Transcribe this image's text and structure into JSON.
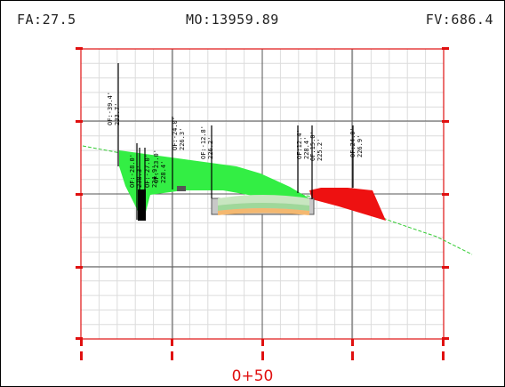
{
  "header": {
    "fa": "FA:27.5",
    "mo": "MO:13959.89",
    "fv": "FV:686.4"
  },
  "station": "0+50",
  "colors": {
    "cut": "#33ee44",
    "fill": "#ee1111",
    "pavement_base": "#f4b870",
    "pavement_mid": "#9fd89a",
    "pavement_top": "#c8e6c0",
    "border": "#e01010",
    "ground": "#33cc33",
    "grid": "#d8d8d8"
  },
  "offset_labels": [
    {
      "line1": "OF:-39.4'",
      "line2": "233.7'"
    },
    {
      "line1": "OF:-28.0'",
      "line2": "238.3'"
    },
    {
      "line1": "OF:-27.0'",
      "line2": "224.9'"
    },
    {
      "line1": "OF:-23.0'",
      "line2": "228.4'"
    },
    {
      "line1": "OF:-24.0'",
      "line2": "226.3'"
    },
    {
      "line1": "OF:-12.8'",
      "line2": "226.2'"
    },
    {
      "line1": "OF:12.4'",
      "line2": "228.4'"
    },
    {
      "line1": "OF:15.0'",
      "line2": "225.2'"
    },
    {
      "line1": "OF:24.0'",
      "line2": "226.9'"
    }
  ]
}
